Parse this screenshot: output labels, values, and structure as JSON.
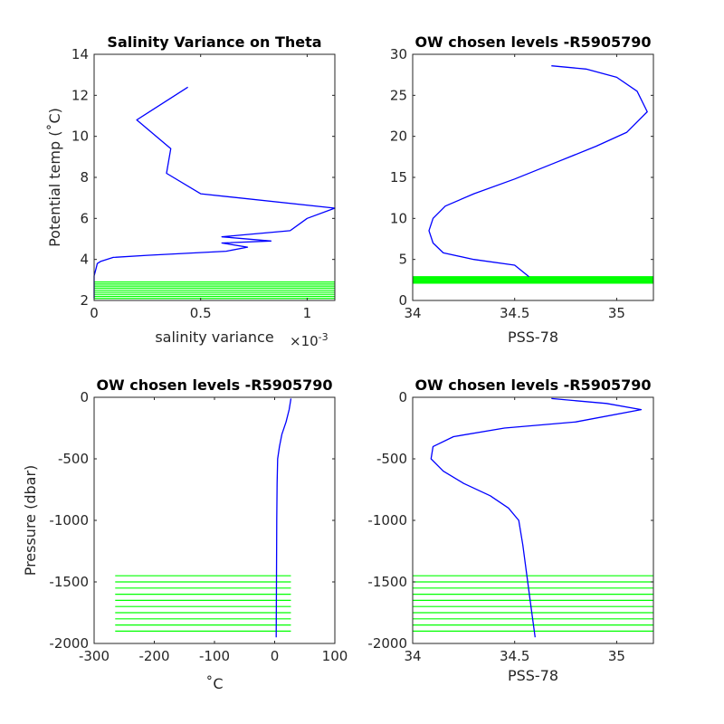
{
  "colors": {
    "profile": "#0000ff",
    "levels": "#00ff00",
    "axes": "#262626"
  },
  "chart_data": [
    {
      "type": "line",
      "title": "Salinity Variance on Theta",
      "xlabel": "salinity variance",
      "xexp": "×10",
      "xexp_power": "-3",
      "ylabel": "Potential temp (˚C)",
      "xlim": [
        0,
        0.00113
      ],
      "ylim": [
        2,
        14
      ],
      "xticks": [
        0,
        0.0005,
        0.001
      ],
      "xtick_labels": [
        "0",
        "0.5",
        "1"
      ],
      "yticks": [
        2,
        4,
        6,
        8,
        10,
        12,
        14
      ],
      "ytick_labels": [
        "2",
        "4",
        "6",
        "8",
        "10",
        "12",
        "14"
      ],
      "series": [
        {
          "points": [
            [
              0.00044,
              12.4
            ],
            [
              0.0002,
              10.8
            ],
            [
              0.00036,
              9.4
            ],
            [
              0.00034,
              8.2
            ],
            [
              0.0005,
              7.2
            ],
            [
              0.00113,
              6.5
            ],
            [
              0.001,
              6.0
            ],
            [
              0.00092,
              5.4
            ],
            [
              0.0006,
              5.1
            ],
            [
              0.00083,
              4.9
            ],
            [
              0.0006,
              4.8
            ],
            [
              0.00072,
              4.6
            ],
            [
              0.00062,
              4.4
            ],
            [
              0.00025,
              4.2
            ],
            [
              9e-05,
              4.1
            ],
            [
              3e-05,
              3.9
            ],
            [
              1.5e-05,
              3.8
            ],
            [
              1e-05,
              3.6
            ],
            [
              5e-06,
              3.4
            ],
            [
              0.0,
              3.2
            ],
            [
              0.0,
              2.1
            ]
          ]
        }
      ],
      "level_lines": {
        "y": [
          2.1,
          2.2,
          2.3,
          2.4,
          2.5,
          2.6,
          2.7,
          2.8,
          2.9
        ],
        "x_range": [
          0,
          0.00113
        ]
      }
    },
    {
      "type": "line",
      "title": "OW chosen levels -R5905790",
      "xlabel": "PSS-78",
      "ylabel": "",
      "xlim": [
        34,
        35.18
      ],
      "ylim": [
        0,
        30
      ],
      "xticks": [
        34,
        34.5,
        35
      ],
      "xtick_labels": [
        "34",
        "34.5",
        "35"
      ],
      "yticks": [
        0,
        5,
        10,
        15,
        20,
        25,
        30
      ],
      "ytick_labels": [
        "0",
        "5",
        "10",
        "15",
        "20",
        "25",
        "30"
      ],
      "series": [
        {
          "points": [
            [
              34.57,
              2.9
            ],
            [
              34.5,
              4.3
            ],
            [
              34.3,
              5.0
            ],
            [
              34.15,
              5.8
            ],
            [
              34.1,
              7.0
            ],
            [
              34.08,
              8.5
            ],
            [
              34.1,
              10.0
            ],
            [
              34.16,
              11.5
            ],
            [
              34.3,
              13.0
            ],
            [
              34.5,
              14.8
            ],
            [
              34.7,
              16.8
            ],
            [
              34.9,
              18.8
            ],
            [
              35.05,
              20.5
            ],
            [
              35.15,
              23.0
            ],
            [
              35.1,
              25.5
            ],
            [
              35.0,
              27.2
            ],
            [
              34.85,
              28.2
            ],
            [
              34.68,
              28.6
            ]
          ]
        }
      ],
      "level_lines": {
        "y": [
          2.1,
          2.2,
          2.3,
          2.4,
          2.5,
          2.6,
          2.7,
          2.8,
          2.9
        ],
        "x_range": [
          34,
          35.18
        ]
      }
    },
    {
      "type": "line",
      "title": "OW chosen levels -R5905790",
      "xlabel": "˚C",
      "ylabel": "Pressure (dbar)",
      "xlim": [
        -300,
        100
      ],
      "ylim": [
        -2000,
        0
      ],
      "xticks": [
        -300,
        -200,
        -100,
        0,
        100
      ],
      "xtick_labels": [
        "-300",
        "-200",
        "-100",
        "0",
        "100"
      ],
      "yticks": [
        -2000,
        -1500,
        -1000,
        -500,
        0
      ],
      "ytick_labels": [
        "-2000",
        "-1500",
        "-1000",
        "-500",
        "0"
      ],
      "series": [
        {
          "points": [
            [
              27,
              -10
            ],
            [
              24,
              -100
            ],
            [
              19,
              -200
            ],
            [
              12,
              -300
            ],
            [
              8,
              -400
            ],
            [
              5,
              -500
            ],
            [
              4,
              -700
            ],
            [
              3.5,
              -1000
            ],
            [
              3,
              -1500
            ],
            [
              2.5,
              -1950
            ]
          ]
        }
      ],
      "level_lines": {
        "y": [
          -1450,
          -1500,
          -1550,
          -1600,
          -1650,
          -1700,
          -1750,
          -1800,
          -1850,
          -1900
        ],
        "x_range": [
          -265,
          27
        ]
      }
    },
    {
      "type": "line",
      "title": "OW chosen levels -R5905790",
      "xlabel": "PSS-78",
      "ylabel": "",
      "xlim": [
        34,
        35.18
      ],
      "ylim": [
        -2000,
        0
      ],
      "xticks": [
        34,
        34.5,
        35
      ],
      "xtick_labels": [
        "34",
        "34.5",
        "35"
      ],
      "yticks": [
        -2000,
        -1500,
        -1000,
        -500,
        0
      ],
      "ytick_labels": [
        "-2000",
        "-1500",
        "-1000",
        "-500",
        "0"
      ],
      "series": [
        {
          "points": [
            [
              34.68,
              -10
            ],
            [
              34.95,
              -50
            ],
            [
              35.12,
              -100
            ],
            [
              34.8,
              -200
            ],
            [
              34.45,
              -250
            ],
            [
              34.2,
              -320
            ],
            [
              34.1,
              -400
            ],
            [
              34.09,
              -500
            ],
            [
              34.15,
              -600
            ],
            [
              34.25,
              -700
            ],
            [
              34.38,
              -800
            ],
            [
              34.47,
              -900
            ],
            [
              34.52,
              -1000
            ],
            [
              34.54,
              -1200
            ],
            [
              34.56,
              -1450
            ],
            [
              34.58,
              -1700
            ],
            [
              34.6,
              -1950
            ]
          ]
        }
      ],
      "level_lines": {
        "y": [
          -1450,
          -1500,
          -1550,
          -1600,
          -1650,
          -1700,
          -1750,
          -1800,
          -1850,
          -1900
        ],
        "x_range": [
          34,
          35.18
        ]
      }
    }
  ]
}
